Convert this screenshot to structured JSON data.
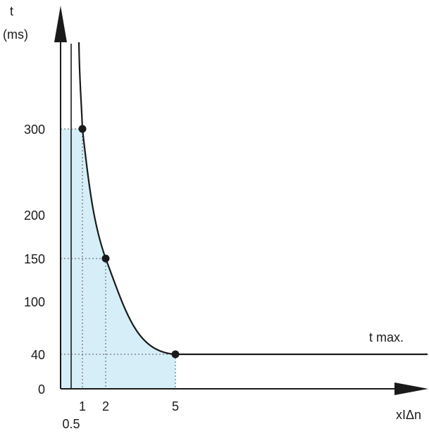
{
  "chart_data": {
    "type": "line",
    "ylabel": "t",
    "yunit": "(ms)",
    "xlabel": "xIΔn",
    "y_ticks": [
      "300",
      "200",
      "150",
      "100",
      "40",
      "0"
    ],
    "y_tick_values": [
      300,
      200,
      150,
      100,
      40,
      0
    ],
    "x_ticks": [
      "1",
      "2",
      "5"
    ],
    "x_tick_values": [
      1,
      2,
      5
    ],
    "x_extra_tick": "0.5",
    "x_extra_tick_value": 0.5,
    "series": [
      {
        "x": [
          1,
          2,
          5,
          16
        ],
        "y": [
          300,
          150,
          40,
          40
        ]
      }
    ],
    "markers": [
      {
        "x": 1,
        "y": 300
      },
      {
        "x": 2,
        "y": 150
      },
      {
        "x": 5,
        "y": 40
      }
    ],
    "annotation": "t max.",
    "shaded_region": true,
    "colors": {
      "fill": "#d6eef8",
      "line": "#1a1a1a",
      "guides": "#555555"
    }
  }
}
